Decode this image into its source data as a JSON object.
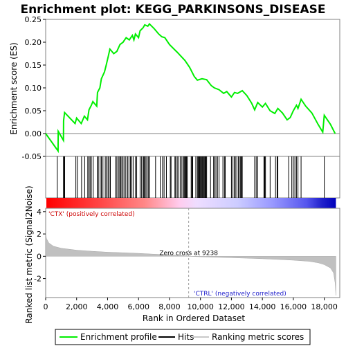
{
  "chart_data": {
    "type": "line",
    "title": "Enrichment plot: KEGG_PARKINSONS_DISEASE",
    "top_panel": {
      "ylabel": "Enrichment score (ES)",
      "ylim": [
        -0.05,
        0.25
      ],
      "yticks": [
        "0.25",
        "0.20",
        "0.15",
        "0.10",
        "0.05",
        "0.00",
        "-0.05"
      ],
      "series_color": "#00ee00",
      "es_points": [
        [
          0,
          0.0
        ],
        [
          800,
          -0.038
        ],
        [
          810,
          0.005
        ],
        [
          1150,
          -0.015
        ],
        [
          1160,
          0.028
        ],
        [
          1220,
          0.046
        ],
        [
          1900,
          0.022
        ],
        [
          2000,
          0.034
        ],
        [
          2300,
          0.022
        ],
        [
          2500,
          0.038
        ],
        [
          2700,
          0.03
        ],
        [
          2800,
          0.052
        ],
        [
          2950,
          0.062
        ],
        [
          3050,
          0.07
        ],
        [
          3300,
          0.06
        ],
        [
          3350,
          0.09
        ],
        [
          3500,
          0.1
        ],
        [
          3600,
          0.12
        ],
        [
          3800,
          0.135
        ],
        [
          3900,
          0.148
        ],
        [
          4050,
          0.17
        ],
        [
          4150,
          0.185
        ],
        [
          4400,
          0.175
        ],
        [
          4600,
          0.18
        ],
        [
          4800,
          0.195
        ],
        [
          5000,
          0.2
        ],
        [
          5200,
          0.21
        ],
        [
          5400,
          0.205
        ],
        [
          5600,
          0.215
        ],
        [
          5700,
          0.205
        ],
        [
          5800,
          0.218
        ],
        [
          6000,
          0.21
        ],
        [
          6100,
          0.225
        ],
        [
          6300,
          0.232
        ],
        [
          6400,
          0.238
        ],
        [
          6600,
          0.235
        ],
        [
          6700,
          0.24
        ],
        [
          7000,
          0.23
        ],
        [
          7300,
          0.218
        ],
        [
          7500,
          0.212
        ],
        [
          7700,
          0.21
        ],
        [
          8000,
          0.195
        ],
        [
          8500,
          0.178
        ],
        [
          9000,
          0.16
        ],
        [
          9300,
          0.145
        ],
        [
          9600,
          0.125
        ],
        [
          9800,
          0.117
        ],
        [
          10100,
          0.12
        ],
        [
          10400,
          0.118
        ],
        [
          10700,
          0.105
        ],
        [
          10900,
          0.1
        ],
        [
          11200,
          0.096
        ],
        [
          11500,
          0.088
        ],
        [
          11700,
          0.092
        ],
        [
          12000,
          0.08
        ],
        [
          12200,
          0.09
        ],
        [
          12400,
          0.088
        ],
        [
          12700,
          0.094
        ],
        [
          13000,
          0.083
        ],
        [
          13300,
          0.067
        ],
        [
          13500,
          0.052
        ],
        [
          13700,
          0.068
        ],
        [
          14000,
          0.058
        ],
        [
          14200,
          0.066
        ],
        [
          14500,
          0.05
        ],
        [
          14800,
          0.044
        ],
        [
          15000,
          0.055
        ],
        [
          15300,
          0.045
        ],
        [
          15600,
          0.03
        ],
        [
          15800,
          0.035
        ],
        [
          16000,
          0.05
        ],
        [
          16200,
          0.062
        ],
        [
          16300,
          0.055
        ],
        [
          16500,
          0.075
        ],
        [
          16800,
          0.06
        ],
        [
          17200,
          0.045
        ],
        [
          17600,
          0.02
        ],
        [
          17900,
          0.003
        ],
        [
          18000,
          0.04
        ],
        [
          18400,
          0.02
        ],
        [
          18700,
          0.0
        ]
      ],
      "zero_label": "0.00"
    },
    "hits": [
      750,
      1150,
      1180,
      1230,
      1950,
      2050,
      2320,
      2520,
      2720,
      2800,
      2870,
      2950,
      3070,
      3350,
      3400,
      3520,
      3600,
      3700,
      3850,
      3920,
      4030,
      4100,
      4180,
      4520,
      4600,
      4700,
      4780,
      4850,
      4920,
      5000,
      5100,
      5180,
      5300,
      5380,
      5480,
      5550,
      5650,
      5800,
      5880,
      6100,
      6200,
      6300,
      6350,
      6400,
      6480,
      6560,
      6650,
      6700,
      7100,
      7400,
      7550,
      7650,
      7800,
      8050,
      8100,
      8350,
      8400,
      8500,
      8600,
      8700,
      8800,
      8900,
      8950,
      9000,
      9050,
      9100,
      9150,
      9400,
      9450,
      9500,
      9700,
      9800,
      9850,
      9900,
      9950,
      10000,
      10050,
      10100,
      10150,
      10200,
      10250,
      10300,
      10350,
      10400,
      10650,
      10850,
      10900,
      11000,
      11100,
      11200,
      11450,
      11550,
      11600,
      12000,
      12100,
      12200,
      12250,
      12350,
      12450,
      12550,
      12600,
      12650,
      12700,
      13500,
      13600,
      13700,
      14100,
      14150,
      14200,
      14500,
      14850,
      14950,
      15000,
      15700,
      15900,
      16000,
      16100,
      16200,
      16300,
      16500,
      18000
    ],
    "bottom_panel": {
      "ylabel": "Ranked list metric (Signal2Noise)",
      "ylim": [
        -3.7,
        4.3
      ],
      "yticks": [
        "4",
        "2",
        "0",
        "-2"
      ],
      "metric_points": [
        [
          0,
          2.1
        ],
        [
          50,
          1.6
        ],
        [
          200,
          1.2
        ],
        [
          500,
          0.9
        ],
        [
          1000,
          0.72
        ],
        [
          2000,
          0.55
        ],
        [
          3000,
          0.45
        ],
        [
          4000,
          0.37
        ],
        [
          5000,
          0.32
        ],
        [
          6000,
          0.26
        ],
        [
          7000,
          0.19
        ],
        [
          8000,
          0.13
        ],
        [
          9000,
          0.05
        ],
        [
          9238,
          0.0
        ],
        [
          10000,
          -0.05
        ],
        [
          11000,
          -0.09
        ],
        [
          12000,
          -0.13
        ],
        [
          13000,
          -0.17
        ],
        [
          14000,
          -0.22
        ],
        [
          15000,
          -0.28
        ],
        [
          16000,
          -0.35
        ],
        [
          17000,
          -0.45
        ],
        [
          17600,
          -0.58
        ],
        [
          18000,
          -0.75
        ],
        [
          18400,
          -1.05
        ],
        [
          18600,
          -1.5
        ],
        [
          18700,
          -2.4
        ],
        [
          18750,
          -3.5
        ]
      ],
      "pos_label": "'CTX' (positively correlated)",
      "neg_label": "'CTRL' (negatively correlated)",
      "zero_cross_label": "Zero cross at 9238",
      "zero_cross_rank": 9238
    },
    "xlabel": "Rank in Ordered Dataset",
    "xlim": [
      0,
      19000
    ],
    "xticks": [
      "0",
      "2,000",
      "4,000",
      "6,000",
      "8,000",
      "10,000",
      "12,000",
      "14,000",
      "16,000",
      "18,000"
    ],
    "xtick_values": [
      0,
      2000,
      4000,
      6000,
      8000,
      10000,
      12000,
      14000,
      16000,
      18000
    ],
    "total_ranks": 18750,
    "legend": {
      "placement": "bottom-center",
      "items": [
        {
          "label": "Enrichment profile",
          "color": "#00ee00"
        },
        {
          "label": "Hits",
          "color": "#000000"
        },
        {
          "label": "Ranking metric scores",
          "color": "#c8c8c8"
        }
      ]
    },
    "colors": {
      "positive": "#ff0000",
      "negative": "#0000ff",
      "metric_fill": "#c0c0c0",
      "pos_text": "#cc0000",
      "neg_text": "#2222cc"
    }
  }
}
